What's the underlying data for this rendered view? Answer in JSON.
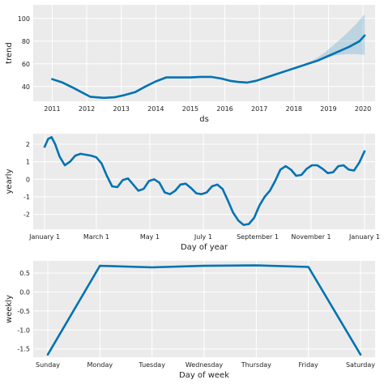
{
  "chart_data": [
    {
      "type": "area",
      "xlabel": "ds",
      "ylabel": "trend",
      "x_type": "year",
      "xlim": [
        2010.45,
        2020.35
      ],
      "ylim": [
        27,
        112
      ],
      "xticks": [
        2011,
        2012,
        2013,
        2014,
        2015,
        2016,
        2017,
        2018,
        2019,
        2020
      ],
      "yticks": [
        40,
        60,
        80,
        100
      ],
      "grid": true,
      "series": [
        {
          "x": [
            2011,
            2011.3,
            2011.6,
            2011.85,
            2012.1,
            2012.5,
            2012.8,
            2013.1,
            2013.4,
            2013.7,
            2014.0,
            2014.3,
            2014.6,
            2015.0,
            2015.3,
            2015.6,
            2015.9,
            2016.15,
            2016.4,
            2016.65,
            2016.9,
            2017.2,
            2017.5,
            2017.8,
            2018.1,
            2018.4,
            2018.7,
            2019.0,
            2019.3,
            2019.6,
            2019.9,
            2020.05
          ],
          "y": [
            46.5,
            43.5,
            39,
            35,
            31,
            30,
            30.5,
            32.5,
            35,
            40,
            44.5,
            48,
            48,
            48,
            48.5,
            48.5,
            47,
            45,
            44,
            43.5,
            45,
            48,
            51,
            54,
            57,
            60,
            63,
            67,
            71,
            75,
            80,
            85
          ]
        }
      ],
      "uncertainty_band": {
        "x": [
          2018.3,
          2018.6,
          2018.9,
          2019.2,
          2019.5,
          2019.8,
          2020.05
        ],
        "upper": [
          60,
          64,
          70,
          78,
          86,
          95,
          104
        ],
        "lower": [
          58.5,
          62,
          65,
          67.5,
          68.5,
          68.5,
          68
        ]
      }
    },
    {
      "type": "line",
      "xlabel": "Day of year",
      "ylabel": "yearly",
      "xlim": [
        -12,
        378
      ],
      "ylim": [
        -2.85,
        2.6
      ],
      "xticks": [
        1,
        60,
        121,
        182,
        244,
        305,
        366
      ],
      "xticklabels": [
        "January 1",
        "March 1",
        "May 1",
        "July 1",
        "September 1",
        "November 1",
        "January 1"
      ],
      "yticks": [
        -2,
        -1,
        0,
        1,
        2
      ],
      "grid": true,
      "series": [
        {
          "x": [
            1,
            5,
            9,
            13,
            18,
            24,
            30,
            36,
            42,
            48,
            54,
            60,
            66,
            72,
            78,
            84,
            90,
            96,
            102,
            108,
            114,
            120,
            126,
            132,
            138,
            144,
            150,
            156,
            162,
            168,
            174,
            180,
            186,
            192,
            198,
            204,
            210,
            216,
            222,
            228,
            234,
            240,
            246,
            252,
            258,
            264,
            270,
            276,
            282,
            288,
            294,
            300,
            306,
            312,
            318,
            324,
            330,
            336,
            342,
            348,
            354,
            360,
            366
          ],
          "y": [
            1.85,
            2.3,
            2.4,
            2.0,
            1.3,
            0.8,
            1.0,
            1.35,
            1.45,
            1.4,
            1.35,
            1.25,
            0.9,
            0.2,
            -0.4,
            -0.45,
            -0.05,
            0.05,
            -0.3,
            -0.65,
            -0.55,
            -0.1,
            0.0,
            -0.2,
            -0.75,
            -0.85,
            -0.65,
            -0.3,
            -0.25,
            -0.5,
            -0.8,
            -0.85,
            -0.75,
            -0.4,
            -0.3,
            -0.55,
            -1.2,
            -1.9,
            -2.35,
            -2.6,
            -2.55,
            -2.2,
            -1.5,
            -1.0,
            -0.65,
            -0.1,
            0.55,
            0.75,
            0.55,
            0.2,
            0.25,
            0.6,
            0.8,
            0.8,
            0.6,
            0.35,
            0.4,
            0.75,
            0.8,
            0.55,
            0.5,
            0.95,
            1.6
          ]
        }
      ]
    },
    {
      "type": "line",
      "xlabel": "Day of week",
      "ylabel": "weekly",
      "xlim": [
        -0.28,
        6.28
      ],
      "ylim": [
        -1.72,
        0.82
      ],
      "xticks": [
        0,
        1,
        2,
        3,
        4,
        5,
        6
      ],
      "xticklabels": [
        "Sunday",
        "Monday",
        "Tuesday",
        "Wednesday",
        "Thursday",
        "Friday",
        "Saturday"
      ],
      "yticks": [
        -1.5,
        -1.0,
        -0.5,
        0.0,
        0.5
      ],
      "yticklabels": [
        "-1.5",
        "-1.0",
        "-0.5",
        "0.0",
        "0.5"
      ],
      "grid": true,
      "series": [
        {
          "x": [
            0,
            1,
            2,
            3,
            4,
            5,
            6
          ],
          "y": [
            -1.65,
            0.69,
            0.65,
            0.69,
            0.7,
            0.66,
            -1.65
          ]
        }
      ]
    }
  ]
}
